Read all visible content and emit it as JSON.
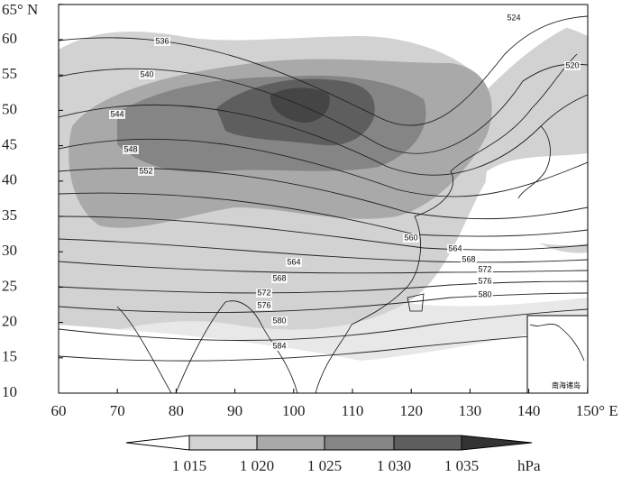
{
  "map": {
    "lat_labels": [
      "10",
      "15",
      "20",
      "25",
      "30",
      "35",
      "40",
      "45",
      "50",
      "55",
      "60",
      "65° N"
    ],
    "lon_labels": [
      "60",
      "70",
      "80",
      "90",
      "100",
      "110",
      "120",
      "130",
      "140",
      "150° E"
    ],
    "contour_labels": [
      "524",
      "520",
      "536",
      "540",
      "544",
      "548",
      "552",
      "560",
      "564",
      "568",
      "572",
      "576",
      "580",
      "564",
      "568",
      "572",
      "576",
      "580",
      "584"
    ],
    "inset_label": "南海诸岛",
    "legend": {
      "labels": [
        "1 015",
        "1 020",
        "1 025",
        "1 030",
        "1 035"
      ],
      "unit": "hPa"
    }
  }
}
